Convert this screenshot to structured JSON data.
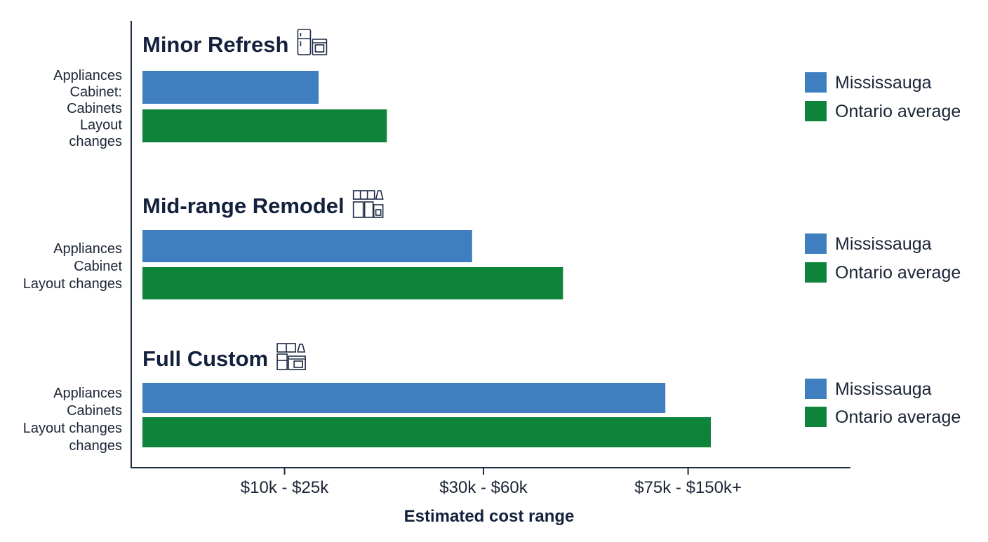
{
  "chart_data": {
    "type": "bar",
    "orientation": "horizontal",
    "xlabel": "Estimated cost range",
    "ylabel": "",
    "xlim": [
      0,
      180
    ],
    "x_ticks": [
      {
        "value": 25,
        "label": "$10k - $25k"
      },
      {
        "value": 60,
        "label": "$30k - $60k"
      },
      {
        "value": 96,
        "label": "$75k - $150k+"
      }
    ],
    "groups": [
      {
        "title": "Minor Refresh",
        "icon": "fridge-oven-icon",
        "category_labels": [
          "Appliances",
          "Cabinet:",
          "Cabinets",
          "Layout",
          "changes"
        ],
        "legend": [
          "Mississauga",
          "Ontario average"
        ],
        "series": [
          {
            "name": "Mississauga",
            "value": 31
          },
          {
            "name": "Ontario average",
            "value": 43
          }
        ]
      },
      {
        "title": "Mid-range Remodel",
        "icon": "kitchen-cabinets-icon",
        "category_labels": [
          "Appliances",
          "Cabinet",
          "Layout changes"
        ],
        "legend": [
          "Mississauga",
          "Ontario average"
        ],
        "series": [
          {
            "name": "Mississauga",
            "value": 58
          },
          {
            "name": "Ontario average",
            "value": 74
          }
        ]
      },
      {
        "title": "Full Custom",
        "icon": "full-kitchen-icon",
        "category_labels": [
          "Appliances",
          "Cabinets",
          "Layout changes",
          "changes"
        ],
        "legend": [
          "Mississauga",
          "Ontario average"
        ],
        "series": [
          {
            "name": "Mississauga",
            "value": 92
          },
          {
            "name": "Ontario average",
            "value": 100
          }
        ]
      }
    ],
    "colors": {
      "Mississauga": "#3f7ebf",
      "Ontario average": "#0e843a"
    },
    "grid": false
  }
}
